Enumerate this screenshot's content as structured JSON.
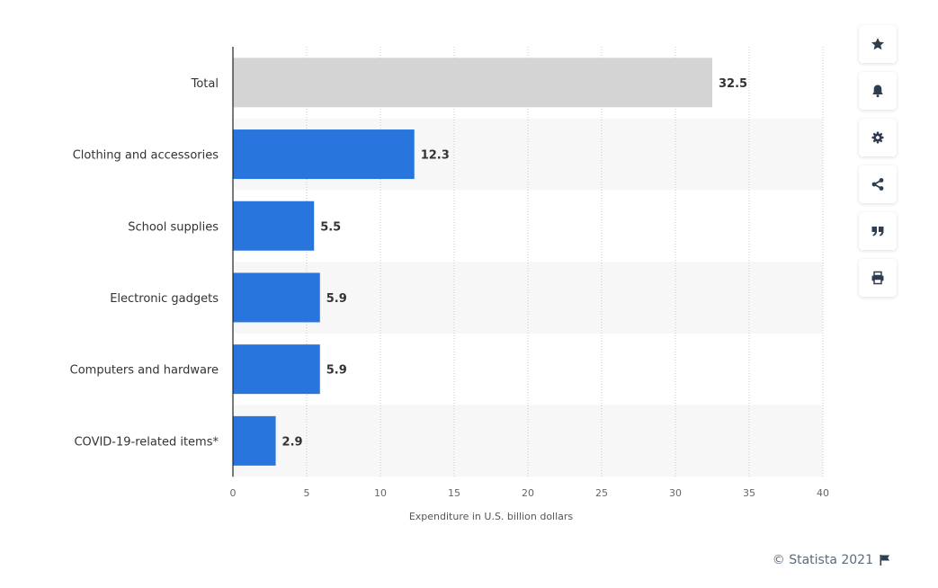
{
  "chart_data": {
    "type": "bar",
    "orientation": "horizontal",
    "categories": [
      "Total",
      "Clothing and accessories",
      "School supplies",
      "Electronic gadgets",
      "Computers and hardware",
      "COVID-19-related items*"
    ],
    "values": [
      32.5,
      12.3,
      5.5,
      5.9,
      5.9,
      2.9
    ],
    "value_labels": [
      "32.5",
      "12.3",
      "5.5",
      "5.9",
      "5.9",
      "2.9"
    ],
    "bar_colors": [
      "#d4d4d4",
      "#2876dd",
      "#2876dd",
      "#2876dd",
      "#2876dd",
      "#2876dd"
    ],
    "xlabel": "Expenditure in U.S. billion dollars",
    "ylabel": "",
    "xlim": [
      0,
      40
    ],
    "xticks": [
      0,
      5,
      10,
      15,
      20,
      25,
      30,
      35,
      40
    ],
    "grid": true
  },
  "toolbar": {
    "buttons": [
      {
        "name": "favorite-button",
        "icon": "star-icon"
      },
      {
        "name": "notification-button",
        "icon": "bell-icon"
      },
      {
        "name": "settings-button",
        "icon": "gear-icon"
      },
      {
        "name": "share-button",
        "icon": "share-icon"
      },
      {
        "name": "cite-button",
        "icon": "quote-icon"
      },
      {
        "name": "print-button",
        "icon": "printer-icon"
      }
    ]
  },
  "credit": {
    "text": "© Statista 2021"
  }
}
